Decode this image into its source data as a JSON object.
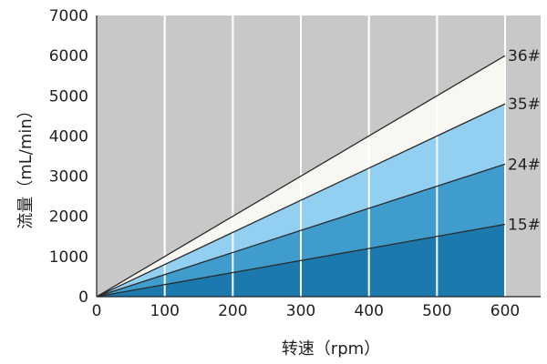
{
  "chart_data": {
    "type": "area",
    "xlabel": "转速（rpm）",
    "ylabel": "流量（mL/min）",
    "xlim": [
      0,
      600
    ],
    "ylim": [
      0,
      7000
    ],
    "x_ticks": [
      "0",
      "100",
      "200",
      "300",
      "400",
      "500",
      "600"
    ],
    "y_ticks": [
      "0",
      "1000",
      "2000",
      "3000",
      "4000",
      "5000",
      "6000",
      "7000"
    ],
    "grid": "vertical",
    "x": [
      0,
      600
    ],
    "series": [
      {
        "name": "15#",
        "values": [
          0,
          1800
        ],
        "color": "#1b79ad"
      },
      {
        "name": "24#",
        "values": [
          0,
          3300
        ],
        "color": "#3f9ccd"
      },
      {
        "name": "35#",
        "values": [
          0,
          4800
        ],
        "color": "#92cff1"
      },
      {
        "name": "36#",
        "values": [
          0,
          6000
        ],
        "color": "#f8f7f2"
      }
    ],
    "background_color": "#c8c8c8",
    "line_color": "#2a2a2a",
    "grid_color": "#ffffff"
  }
}
